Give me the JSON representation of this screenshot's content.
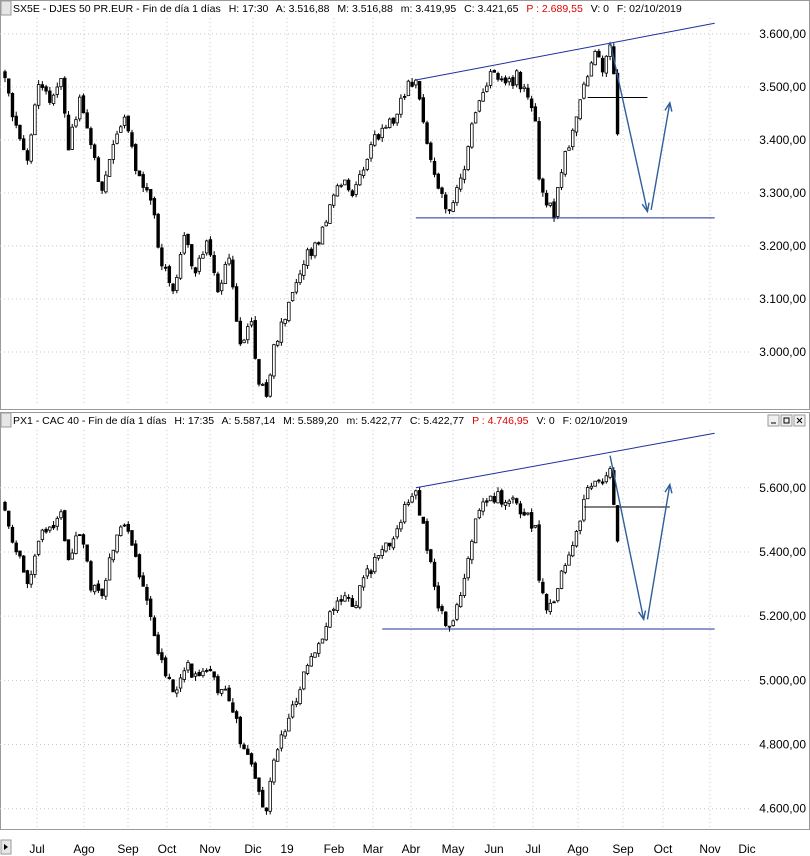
{
  "x_axis": {
    "labels": [
      "Jul",
      "Ago",
      "Sep",
      "Oct",
      "Nov",
      "Dic",
      "19",
      "Feb",
      "Mar",
      "Abr",
      "May",
      "Jun",
      "Jul",
      "Ago",
      "Sep",
      "Oct",
      "Nov",
      "Dic"
    ]
  },
  "colors": {
    "candles": "#000000",
    "trendlines": "#1c2f9e",
    "arrows": "#2f5f9a",
    "header_value_red": "#e00000",
    "grid": "#c8c8c8"
  },
  "chart_data": [
    {
      "type": "bar",
      "header": {
        "symbol": "SX5E - DJES 50 PR.EUR - Fin de día 1 días",
        "time": "H: 17:30",
        "open": "A: 3.516,88",
        "high": "M: 3.516,88",
        "low": "m: 3.419,95",
        "close": "C: 3.421,65",
        "p_value": "P : 2.689,55",
        "volume": "V: 0",
        "date": "F: 02/10/2019"
      },
      "ylim": [
        2900,
        3630
      ],
      "y_ticks": [
        3000,
        3100,
        3200,
        3300,
        3400,
        3500,
        3600
      ],
      "y_tick_labels": [
        "3.000,00",
        "3.100,00",
        "3.200,00",
        "3.300,00",
        "3.400,00",
        "3.500,00",
        "3.600,00"
      ],
      "price_anchors": [
        [
          0,
          3530
        ],
        [
          2,
          3450
        ],
        [
          6,
          3370
        ],
        [
          9,
          3500
        ],
        [
          12,
          3470
        ],
        [
          15,
          3520
        ],
        [
          17,
          3380
        ],
        [
          20,
          3480
        ],
        [
          23,
          3400
        ],
        [
          26,
          3300
        ],
        [
          29,
          3400
        ],
        [
          32,
          3450
        ],
        [
          35,
          3350
        ],
        [
          39,
          3290
        ],
        [
          42,
          3170
        ],
        [
          45,
          3120
        ],
        [
          48,
          3210
        ],
        [
          51,
          3150
        ],
        [
          54,
          3220
        ],
        [
          57,
          3120
        ],
        [
          60,
          3170
        ],
        [
          63,
          3020
        ],
        [
          66,
          3050
        ],
        [
          68,
          2950
        ],
        [
          70,
          2920
        ],
        [
          72,
          3010
        ],
        [
          75,
          3070
        ],
        [
          78,
          3130
        ],
        [
          81,
          3180
        ],
        [
          84,
          3200
        ],
        [
          87,
          3270
        ],
        [
          90,
          3320
        ],
        [
          93,
          3300
        ],
        [
          96,
          3350
        ],
        [
          99,
          3410
        ],
        [
          102,
          3420
        ],
        [
          105,
          3450
        ],
        [
          108,
          3500
        ],
        [
          110,
          3500
        ],
        [
          113,
          3400
        ],
        [
          116,
          3310
        ],
        [
          118,
          3270
        ],
        [
          119,
          3260
        ],
        [
          122,
          3320
        ],
        [
          125,
          3420
        ],
        [
          128,
          3490
        ],
        [
          131,
          3530
        ],
        [
          134,
          3500
        ],
        [
          137,
          3520
        ],
        [
          140,
          3480
        ],
        [
          142,
          3440
        ],
        [
          143,
          3330
        ],
        [
          145,
          3280
        ],
        [
          147,
          3260
        ],
        [
          149,
          3340
        ],
        [
          152,
          3420
        ],
        [
          155,
          3500
        ],
        [
          158,
          3570
        ],
        [
          160,
          3540
        ],
        [
          162,
          3580
        ],
        [
          163,
          3520
        ],
        [
          164,
          3420
        ]
      ],
      "resistance_line": [
        [
          110,
          3513
        ],
        [
          190,
          3620
        ]
      ],
      "support_level": 3253,
      "support_range": [
        110,
        190
      ],
      "neckline": {
        "value": 3480,
        "range": [
          156,
          172
        ]
      },
      "arrow_down": {
        "from": [
          162,
          3585
        ],
        "to": [
          172,
          3265
        ]
      },
      "arrow_up": {
        "from": [
          173,
          3268
        ],
        "to": [
          178,
          3470
        ]
      }
    },
    {
      "type": "bar",
      "header": {
        "symbol": "PX1 - CAC 40 - Fin de día 1 días",
        "time": "H: 17:35",
        "open": "A: 5.587,14",
        "high": "M: 5.589,20",
        "low": "m: 5.422,77",
        "close": "C: 5.422,77",
        "p_value": "P : 4.746,95",
        "volume": "V: 0",
        "date": "F: 02/10/2019"
      },
      "ylim": [
        4540,
        5780
      ],
      "y_ticks": [
        4600,
        4800,
        5000,
        5200,
        5400,
        5600
      ],
      "y_tick_labels": [
        "4.600,00",
        "4.800,00",
        "5.000,00",
        "5.200,00",
        "5.400,00",
        "5.600,00"
      ],
      "price_anchors": [
        [
          0,
          5550
        ],
        [
          2,
          5450
        ],
        [
          6,
          5300
        ],
        [
          9,
          5450
        ],
        [
          12,
          5480
        ],
        [
          15,
          5520
        ],
        [
          17,
          5380
        ],
        [
          20,
          5460
        ],
        [
          23,
          5300
        ],
        [
          26,
          5250
        ],
        [
          29,
          5420
        ],
        [
          32,
          5500
        ],
        [
          35,
          5380
        ],
        [
          39,
          5200
        ],
        [
          42,
          5050
        ],
        [
          45,
          4960
        ],
        [
          48,
          5050
        ],
        [
          51,
          5020
        ],
        [
          54,
          5030
        ],
        [
          57,
          4980
        ],
        [
          60,
          4950
        ],
        [
          63,
          4820
        ],
        [
          66,
          4760
        ],
        [
          68,
          4650
        ],
        [
          70,
          4600
        ],
        [
          72,
          4750
        ],
        [
          75,
          4850
        ],
        [
          78,
          4950
        ],
        [
          81,
          5050
        ],
        [
          84,
          5100
        ],
        [
          87,
          5200
        ],
        [
          90,
          5250
        ],
        [
          93,
          5230
        ],
        [
          96,
          5300
        ],
        [
          99,
          5380
        ],
        [
          102,
          5420
        ],
        [
          105,
          5480
        ],
        [
          108,
          5560
        ],
        [
          110,
          5590
        ],
        [
          113,
          5420
        ],
        [
          116,
          5230
        ],
        [
          118,
          5170
        ],
        [
          119,
          5170
        ],
        [
          122,
          5280
        ],
        [
          125,
          5450
        ],
        [
          128,
          5570
        ],
        [
          131,
          5570
        ],
        [
          134,
          5560
        ],
        [
          137,
          5550
        ],
        [
          140,
          5510
        ],
        [
          142,
          5480
        ],
        [
          143,
          5330
        ],
        [
          145,
          5240
        ],
        [
          147,
          5230
        ],
        [
          149,
          5330
        ],
        [
          152,
          5420
        ],
        [
          155,
          5550
        ],
        [
          158,
          5640
        ],
        [
          160,
          5620
        ],
        [
          162,
          5680
        ],
        [
          163,
          5560
        ],
        [
          164,
          5430
        ]
      ],
      "resistance_line": [
        [
          110,
          5600
        ],
        [
          190,
          5770
        ]
      ],
      "support_level": 5160,
      "support_range": [
        101,
        190
      ],
      "neckline": {
        "value": 5540,
        "range": [
          155,
          178
        ]
      },
      "arrow_down": {
        "from": [
          162,
          5700
        ],
        "to": [
          171,
          5190
        ]
      },
      "arrow_up": {
        "from": [
          172,
          5190
        ],
        "to": [
          178,
          5610
        ]
      }
    }
  ]
}
